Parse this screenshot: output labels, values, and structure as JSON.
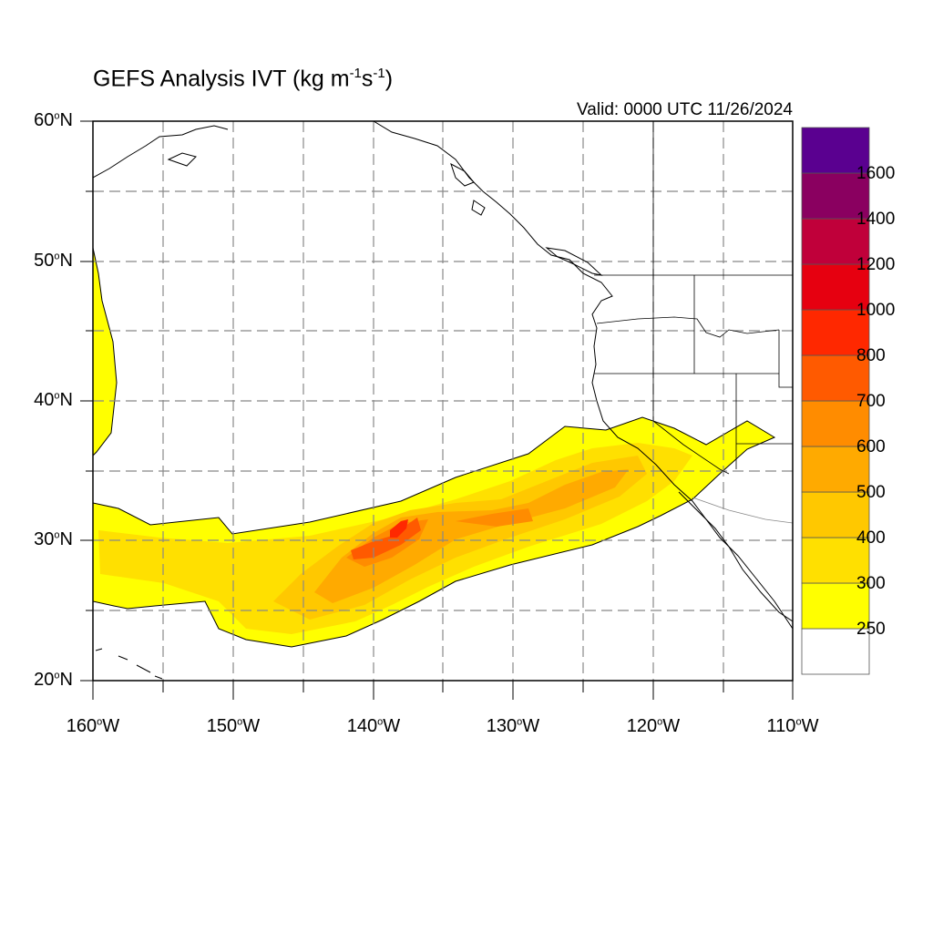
{
  "map": {
    "title_main": "GEFS Analysis IVT (kg m",
    "title_sup1": "-1",
    "title_mid": "s",
    "title_sup2": "-1",
    "title_end": ")",
    "valid_text": "Valid: 0000 UTC 11/26/2024",
    "degree_symbol": "o",
    "lat_ticks": [
      {
        "num": "60",
        "dir": "N"
      },
      {
        "num": "50",
        "dir": "N"
      },
      {
        "num": "40",
        "dir": "N"
      },
      {
        "num": "30",
        "dir": "N"
      },
      {
        "num": "20",
        "dir": "N"
      }
    ],
    "lon_ticks": [
      {
        "num": "160",
        "dir": "W"
      },
      {
        "num": "150",
        "dir": "W"
      },
      {
        "num": "140",
        "dir": "W"
      },
      {
        "num": "130",
        "dir": "W"
      },
      {
        "num": "120",
        "dir": "W"
      },
      {
        "num": "110",
        "dir": "W"
      }
    ],
    "extent": {
      "lon_min": -160,
      "lon_max": -110,
      "lat_min": 20,
      "lat_max": 60
    }
  },
  "colorbar": {
    "levels": [
      "250",
      "300",
      "400",
      "500",
      "600",
      "700",
      "800",
      "1000",
      "1200",
      "1400",
      "1600"
    ],
    "colors": [
      "#ffffff",
      "#ffff00",
      "#ffe000",
      "#ffc800",
      "#ffaa00",
      "#ff8c00",
      "#ff5a00",
      "#ff2800",
      "#e60010",
      "#c0003a",
      "#8a0060",
      "#5a0090"
    ]
  }
}
